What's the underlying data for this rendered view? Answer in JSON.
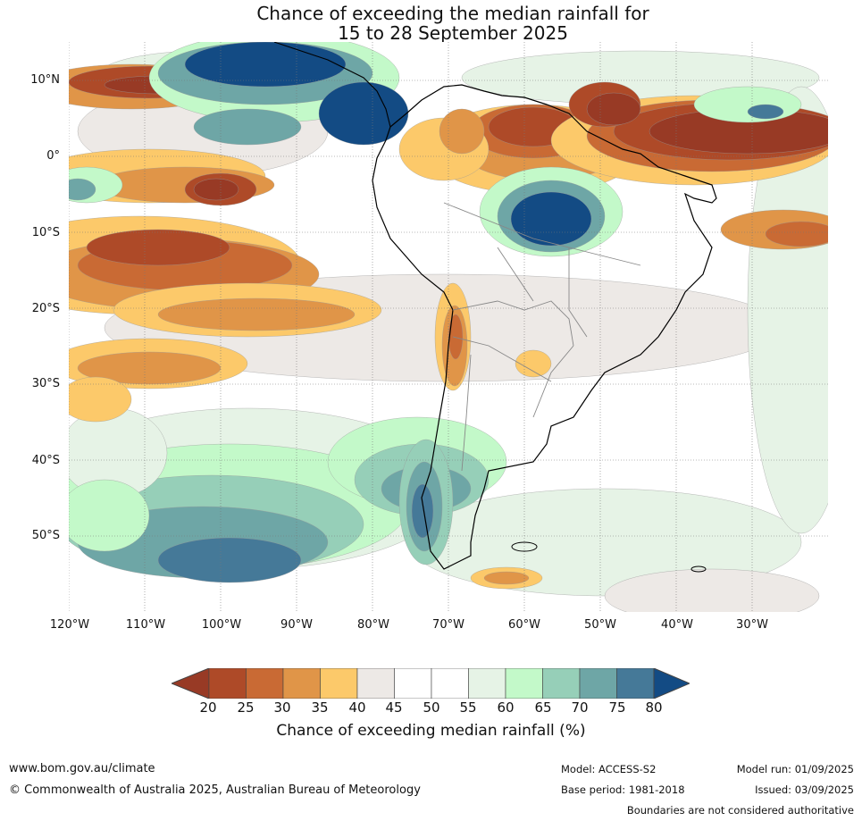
{
  "title": {
    "line1": "Chance of exceeding the median rainfall for",
    "line2": "15 to 28 September 2025"
  },
  "map": {
    "lat_labels": [
      "10°N",
      "0°",
      "10°S",
      "20°S",
      "30°S",
      "40°S",
      "50°S"
    ],
    "lon_labels": [
      "120°W",
      "110°W",
      "100°W",
      "90°W",
      "80°W",
      "70°W",
      "60°W",
      "50°W",
      "40°W",
      "30°W"
    ],
    "colors": {
      "c20": "#983a25",
      "c25": "#ae4a28",
      "c30": "#c96a34",
      "c35": "#e09548",
      "c40": "#fcc96a",
      "c45": "#ede9e6",
      "c50": "#ffffff",
      "c55": "#ffffff",
      "c60": "#e6f3e6",
      "c65": "#c3f9c9",
      "c70": "#96cfb8",
      "c75": "#6ea6a6",
      "c80": "#457998",
      "c85": "#134b84"
    }
  },
  "colorbar": {
    "ticks": [
      "20",
      "25",
      "30",
      "35",
      "40",
      "45",
      "50",
      "55",
      "60",
      "65",
      "70",
      "75",
      "80"
    ],
    "label": "Chance of exceeding median rainfall (%)"
  },
  "footer": {
    "website": "www.bom.gov.au/climate",
    "copyright": "© Commonwealth of Australia 2025, Australian Bureau of Meteorology",
    "model": "Model: ACCESS-S2",
    "base_period": "Base period: 1981-2018",
    "model_run": "Model run: 01/09/2025",
    "issued": "Issued: 03/09/2025",
    "disclaimer": "Boundaries are not considered authoritative"
  }
}
